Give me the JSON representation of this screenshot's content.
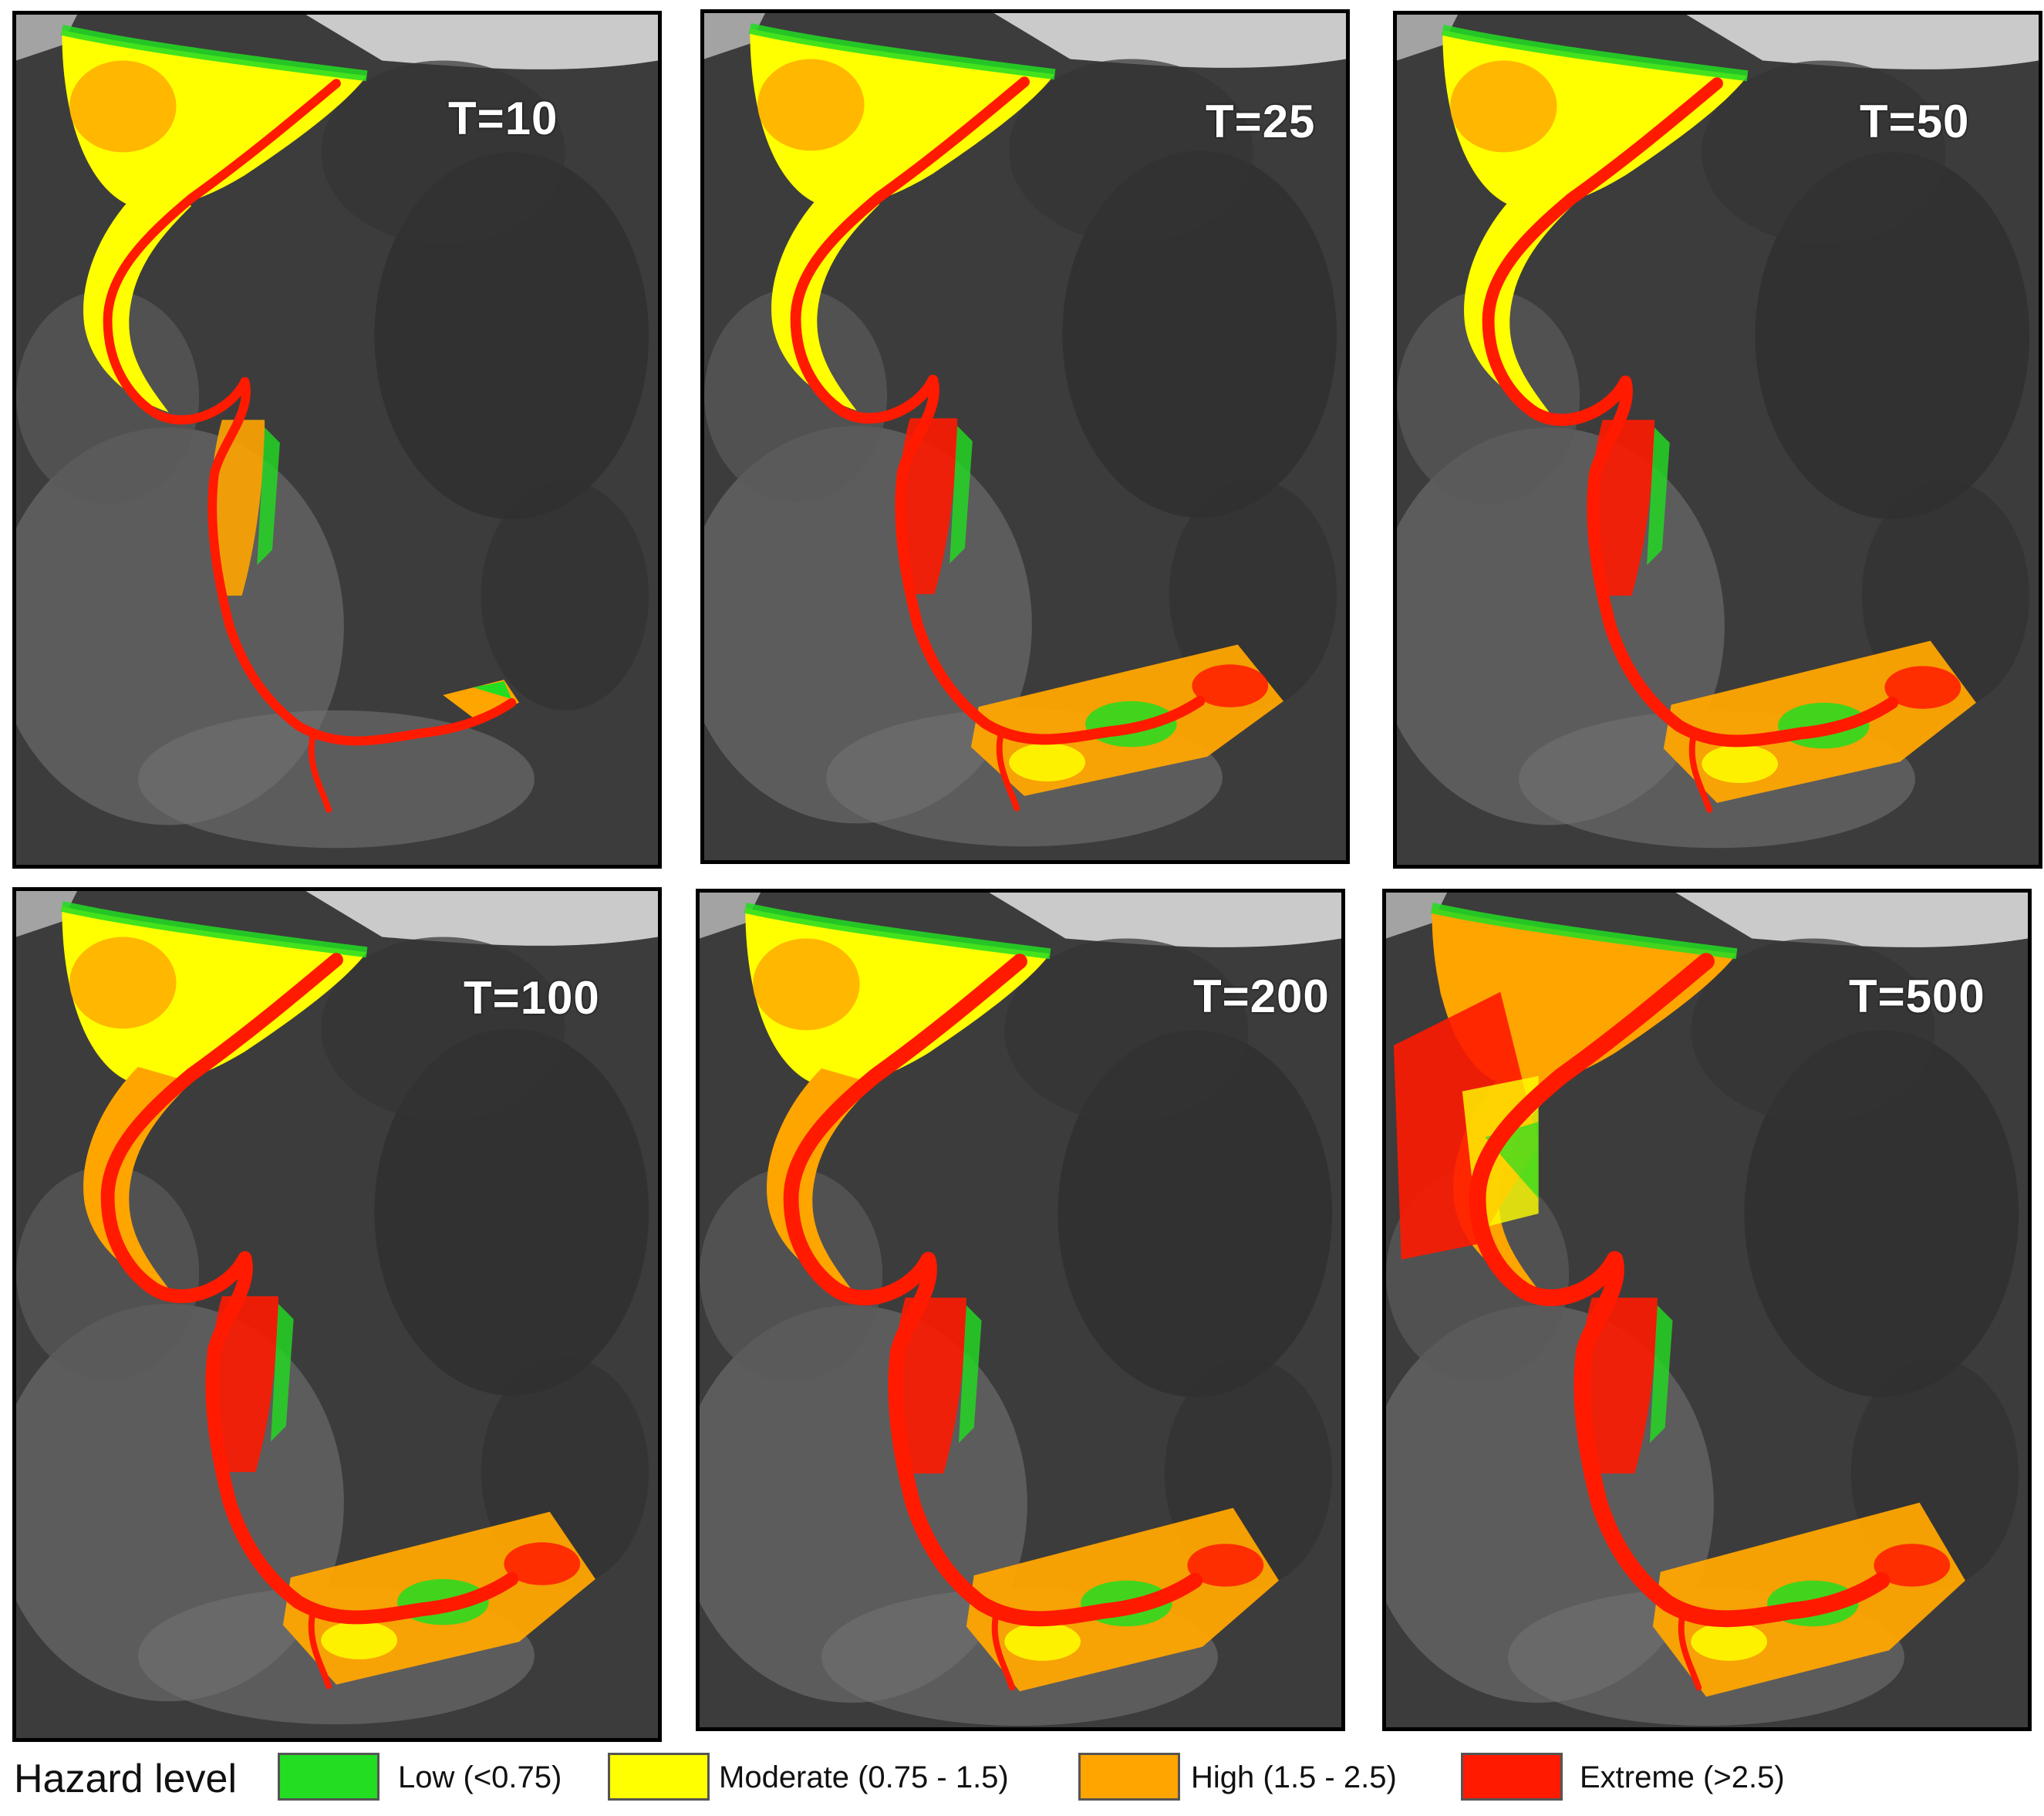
{
  "colors": {
    "low": "#22dd22",
    "moderate": "#ffff00",
    "high": "#ffa500",
    "extreme": "#ff1a00",
    "background_dark": "#3c3c3c",
    "sea": "#d9d9d9"
  },
  "panels": [
    {
      "label": "T=10",
      "level": 1
    },
    {
      "label": "T=25",
      "level": 2
    },
    {
      "label": "T=50",
      "level": 3
    },
    {
      "label": "T=100",
      "level": 4
    },
    {
      "label": "T=200",
      "level": 5
    },
    {
      "label": "T=500",
      "level": 6
    }
  ],
  "legend": {
    "title": "Hazard level",
    "items": [
      {
        "label": "Low (<0.75)",
        "color": "#22dd22"
      },
      {
        "label": "Moderate (0.75 - 1.5)",
        "color": "#ffff00"
      },
      {
        "label": "High (1.5 - 2.5)",
        "color": "#ffa500"
      },
      {
        "label": "Extreme (>2.5)",
        "color": "#ff1a00"
      }
    ]
  }
}
